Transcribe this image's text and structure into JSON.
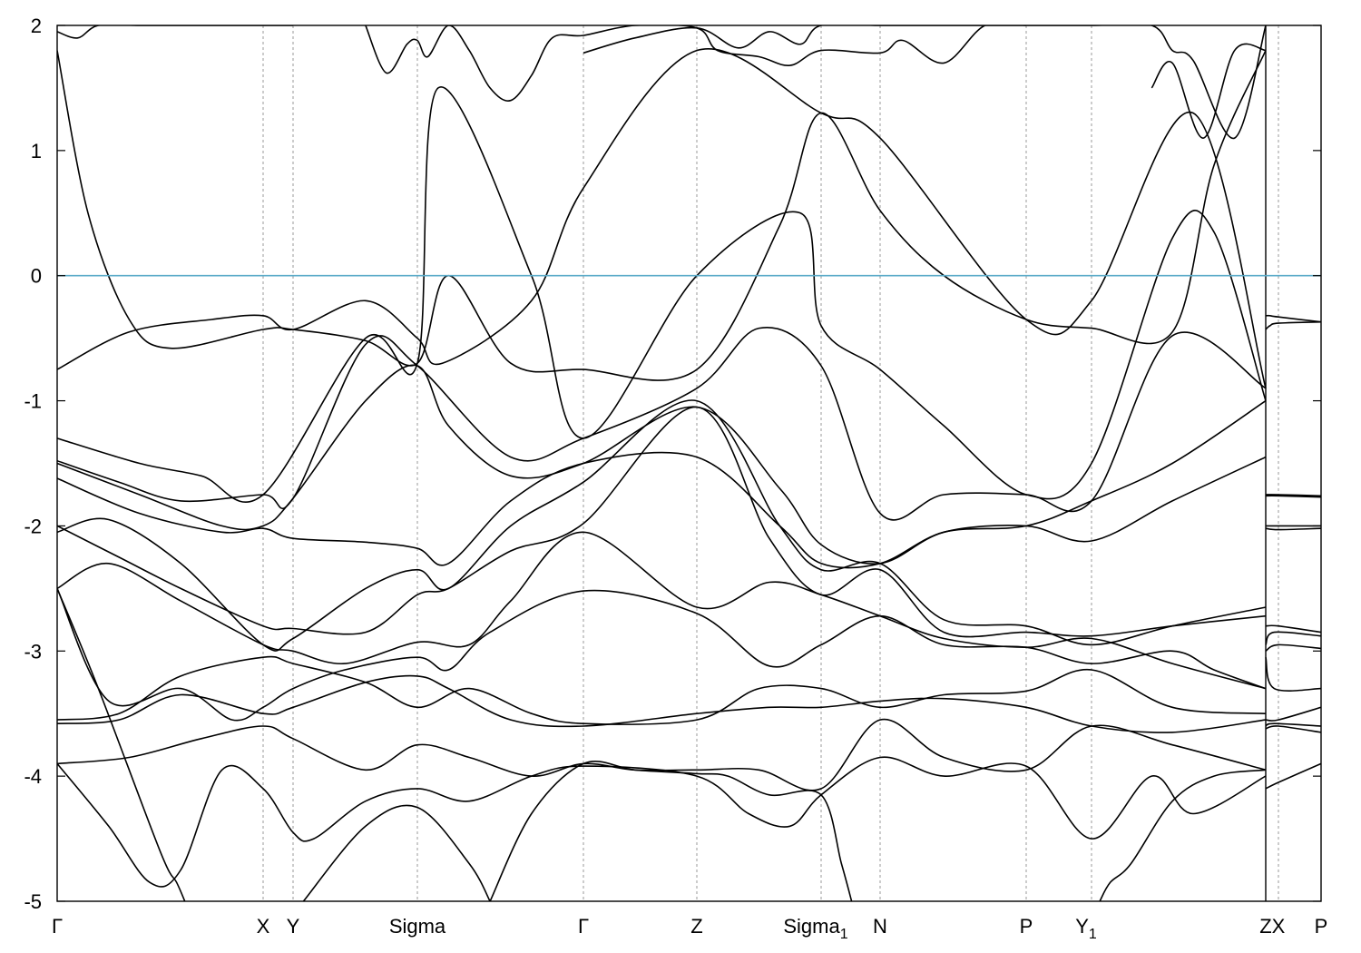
{
  "chart_data": {
    "type": "line",
    "title": "",
    "xlabel": "",
    "ylabel": "",
    "ylim": [
      -5,
      2
    ],
    "yticks": [
      -5,
      -4,
      -3,
      -2,
      -1,
      0,
      1,
      2
    ],
    "fermi_level": 0,
    "colors": {
      "bands": "#000000",
      "fermi": "#5aaac8",
      "kpath_lines": "#999999"
    },
    "kpoints": [
      {
        "label": "Γ",
        "sub": "",
        "k": 0.0
      },
      {
        "label": "X",
        "sub": "",
        "k": 1.0
      },
      {
        "label": "Y",
        "sub": "",
        "k": 1.15
      },
      {
        "label": "Sigma",
        "sub": "",
        "k": 1.75
      },
      {
        "label": "Γ",
        "sub": "",
        "k": 2.55
      },
      {
        "label": "Z",
        "sub": "",
        "k": 3.1
      },
      {
        "label": "Sigma",
        "sub": "1",
        "k": 3.7
      },
      {
        "label": "N",
        "sub": "",
        "k": 3.99
      },
      {
        "label": "P",
        "sub": "",
        "k": 4.7
      },
      {
        "label": "Y",
        "sub": "1",
        "k": 5.01
      },
      {
        "label": "Z",
        "sub": "",
        "k": 5.85
      },
      {
        "label": "X",
        "sub": "",
        "k": 6.0
      },
      {
        "label": "P",
        "sub": "",
        "k": 6.12
      }
    ],
    "x_range": [
      0.0,
      6.12
    ],
    "segment_break": 5.85,
    "series": [
      {
        "x": [
          0.0,
          0.35,
          0.75,
          1.0,
          1.15,
          1.5,
          1.75,
          1.87,
          2.3,
          2.55,
          3.1,
          3.7,
          3.99,
          4.7,
          5.01,
          5.5,
          5.85
        ],
        "y": [
          -0.75,
          -0.45,
          -0.35,
          -0.32,
          -0.43,
          -0.2,
          -0.5,
          -0.7,
          -0.2,
          0.7,
          1.8,
          1.3,
          1.1,
          -0.35,
          -0.2,
          1.3,
          -0.9
        ]
      },
      {
        "x": [
          0.0,
          0.15,
          0.35,
          0.55,
          1.0,
          1.15,
          1.5,
          1.75,
          1.9,
          2.2,
          2.55,
          3.1,
          3.5,
          3.7,
          3.99,
          4.3,
          4.7,
          5.01,
          5.4,
          5.6,
          5.85
        ],
        "y": [
          1.8,
          0.5,
          -0.35,
          -0.58,
          -0.43,
          -0.43,
          -0.52,
          -0.7,
          0.0,
          -0.7,
          -0.75,
          -0.75,
          0.4,
          1.3,
          0.52,
          0.0,
          -0.35,
          -0.42,
          -0.45,
          0.88,
          1.8
        ]
      },
      {
        "x": [
          0.0,
          0.4,
          0.7,
          1.0,
          1.5,
          1.75,
          1.85,
          2.3,
          2.55,
          3.1,
          3.6,
          3.7,
          3.99,
          4.3,
          4.7,
          5.01,
          5.4,
          5.6,
          5.85
        ],
        "y": [
          -1.3,
          -1.5,
          -1.6,
          -1.75,
          -0.5,
          -0.7,
          1.5,
          0.0,
          -1.3,
          0.0,
          0.5,
          -0.4,
          -0.75,
          -1.2,
          -1.75,
          -1.5,
          0.3,
          0.35,
          -1.0
        ]
      },
      {
        "x": [
          0.0,
          0.3,
          0.6,
          1.0,
          1.15,
          1.5,
          1.75,
          2.2,
          2.55,
          3.1,
          3.4,
          3.7,
          3.99,
          4.3,
          4.7,
          5.01,
          5.4,
          5.85
        ],
        "y": [
          -1.48,
          -1.65,
          -1.8,
          -1.75,
          -1.78,
          -0.55,
          -0.72,
          -1.45,
          -1.3,
          -0.9,
          -0.42,
          -0.72,
          -1.9,
          -1.75,
          -1.75,
          -1.8,
          -0.48,
          -0.9
        ]
      },
      {
        "x": [
          0.0,
          0.4,
          0.8,
          1.0,
          1.15,
          1.5,
          1.75,
          1.9,
          2.2,
          2.55,
          3.1,
          3.5,
          3.7,
          3.99,
          4.3,
          4.7,
          5.01,
          5.4,
          5.85
        ],
        "y": [
          -1.5,
          -1.75,
          -2.0,
          -2.0,
          -1.78,
          -1.0,
          -0.72,
          -1.2,
          -1.6,
          -1.5,
          -1.05,
          -1.7,
          -2.15,
          -2.3,
          -2.05,
          -2.0,
          -1.8,
          -1.5,
          -1.0
        ]
      },
      {
        "x": [
          0.0,
          0.4,
          0.8,
          1.0,
          1.15,
          1.5,
          1.75,
          1.9,
          2.2,
          2.55,
          3.1,
          3.5,
          3.7,
          3.99,
          4.3,
          4.7,
          5.01,
          5.4,
          5.85
        ],
        "y": [
          -1.62,
          -1.9,
          -2.05,
          -2.02,
          -2.1,
          -2.13,
          -2.18,
          -2.3,
          -1.8,
          -1.5,
          -1.45,
          -2.0,
          -2.3,
          -2.3,
          -2.05,
          -2.0,
          -2.12,
          -1.8,
          -1.45
        ]
      },
      {
        "x": [
          0.0,
          0.25,
          0.6,
          1.0,
          1.15,
          1.5,
          1.75,
          1.9,
          2.2,
          2.55,
          3.1,
          3.5,
          3.7,
          3.99,
          4.3,
          4.7,
          5.01,
          5.4,
          5.85
        ],
        "y": [
          -2.05,
          -1.95,
          -2.3,
          -2.95,
          -2.9,
          -2.5,
          -2.35,
          -2.5,
          -2.0,
          -1.65,
          -1.0,
          -2.0,
          -2.35,
          -2.3,
          -2.75,
          -2.8,
          -2.95,
          -2.8,
          -2.65
        ]
      },
      {
        "x": [
          0.0,
          0.3,
          0.6,
          1.0,
          1.15,
          1.5,
          1.75,
          1.9,
          2.2,
          2.55,
          3.1,
          3.45,
          3.7,
          3.99,
          4.3,
          4.7,
          5.01,
          5.4,
          5.85
        ],
        "y": [
          -2.0,
          -2.25,
          -2.5,
          -2.8,
          -2.82,
          -2.85,
          -2.55,
          -2.5,
          -2.2,
          -1.98,
          -1.05,
          -2.1,
          -2.55,
          -2.35,
          -2.85,
          -2.85,
          -2.88,
          -2.8,
          -2.72
        ]
      },
      {
        "x": [
          0.0,
          0.25,
          0.6,
          1.0,
          1.15,
          1.4,
          1.75,
          2.0,
          2.2,
          2.55,
          3.1,
          3.45,
          3.7,
          3.99,
          4.3,
          4.7,
          5.01,
          5.4,
          5.85
        ],
        "y": [
          -2.5,
          -2.3,
          -2.6,
          -2.95,
          -3.0,
          -3.1,
          -2.93,
          -2.95,
          -2.6,
          -2.05,
          -2.65,
          -2.45,
          -2.55,
          -2.72,
          -2.9,
          -2.97,
          -2.9,
          -3.1,
          -3.3
        ]
      },
      {
        "x": [
          0.0,
          0.25,
          0.6,
          0.85,
          1.0,
          1.15,
          1.4,
          1.75,
          1.9,
          2.1,
          2.55,
          3.1,
          3.45,
          3.7,
          3.99,
          4.3,
          4.7,
          5.01,
          5.4,
          5.6,
          5.85
        ],
        "y": [
          -2.5,
          -3.4,
          -3.3,
          -3.55,
          -3.45,
          -3.3,
          -3.15,
          -3.05,
          -3.15,
          -2.85,
          -2.52,
          -2.7,
          -3.12,
          -2.95,
          -2.72,
          -2.95,
          -2.97,
          -3.1,
          -3.0,
          -3.15,
          -3.3
        ]
      },
      {
        "x": [
          0.0,
          0.3,
          0.6,
          1.0,
          1.15,
          1.5,
          1.75,
          2.0,
          2.3,
          2.55,
          3.1,
          3.4,
          3.7,
          3.99,
          4.3,
          4.7,
          5.01,
          5.4,
          5.85
        ],
        "y": [
          -3.55,
          -3.5,
          -3.2,
          -3.05,
          -3.1,
          -3.25,
          -3.45,
          -3.3,
          -3.5,
          -3.58,
          -3.55,
          -3.3,
          -3.3,
          -3.45,
          -3.35,
          -3.32,
          -3.15,
          -3.45,
          -3.5
        ]
      },
      {
        "x": [
          0.0,
          0.3,
          0.6,
          1.0,
          1.15,
          1.5,
          1.75,
          1.9,
          2.2,
          2.55,
          3.1,
          3.45,
          3.7,
          3.99,
          4.3,
          4.7,
          5.01,
          5.4,
          5.85
        ],
        "y": [
          -3.58,
          -3.55,
          -3.35,
          -3.5,
          -3.45,
          -3.25,
          -3.2,
          -3.3,
          -3.55,
          -3.6,
          -3.5,
          -3.45,
          -3.45,
          -3.4,
          -3.38,
          -3.45,
          -3.6,
          -3.65,
          -3.55
        ]
      },
      {
        "x": [
          0.0,
          0.35,
          0.7,
          1.0,
          1.15,
          1.5,
          1.75,
          2.0,
          2.3,
          2.55,
          2.8,
          3.1,
          3.4,
          3.7,
          3.99,
          4.3,
          4.7,
          5.01,
          5.4,
          5.85
        ],
        "y": [
          -3.9,
          -3.85,
          -3.7,
          -3.6,
          -3.7,
          -3.95,
          -3.75,
          -3.85,
          -4.0,
          -3.9,
          -3.95,
          -3.95,
          -3.95,
          -4.1,
          -3.55,
          -3.85,
          -3.95,
          -3.6,
          -3.75,
          -3.95
        ]
      },
      {
        "x": [
          0.0,
          0.25,
          0.45,
          0.6,
          0.8,
          1.0,
          1.15,
          1.25,
          1.5,
          1.75,
          2.0,
          2.3,
          2.55,
          3.1,
          3.35,
          3.55,
          3.7,
          3.99,
          4.3,
          4.7,
          5.01,
          5.3,
          5.5,
          5.85
        ],
        "y": [
          -3.9,
          -4.4,
          -4.85,
          -4.75,
          -3.95,
          -4.1,
          -4.45,
          -4.5,
          -4.2,
          -4.1,
          -4.2,
          -4.0,
          -3.92,
          -4.0,
          -4.3,
          -4.4,
          -4.15,
          -3.85,
          -4.0,
          -3.92,
          -4.5,
          -4.0,
          -4.3,
          -4.0
        ]
      },
      {
        "x": [
          0.0,
          0.2,
          0.5,
          0.58,
          0.62
        ],
        "y": [
          -2.5,
          -3.3,
          -4.6,
          -4.85,
          -5.0
        ]
      },
      {
        "x": [
          1.2,
          1.5,
          1.75,
          2.0,
          2.1
        ],
        "y": [
          -5.0,
          -4.4,
          -4.25,
          -4.7,
          -5.0
        ]
      },
      {
        "x": [
          2.1,
          2.3,
          2.55,
          2.8,
          3.1,
          3.25,
          3.45,
          3.7,
          3.8,
          3.85
        ],
        "y": [
          -5.0,
          -4.3,
          -3.9,
          -3.95,
          -3.98,
          -4.0,
          -4.15,
          -4.15,
          -4.7,
          -5.0
        ]
      },
      {
        "x": [
          5.05,
          5.1,
          5.2,
          5.4,
          5.6,
          5.85
        ],
        "y": [
          -5.0,
          -4.85,
          -4.7,
          -4.2,
          -4.0,
          -3.95
        ]
      },
      {
        "x": [
          0.0,
          0.1,
          0.2,
          0.4,
          0.6,
          0.8,
          1.0,
          1.15
        ],
        "y": [
          1.95,
          1.9,
          2.0,
          2.0,
          2.0,
          2.0,
          2.0,
          2.0
        ]
      },
      {
        "x": [
          1.5,
          1.6,
          1.7,
          1.75,
          1.8,
          1.9,
          2.0,
          2.1,
          2.2,
          2.3,
          2.4,
          2.55,
          2.8,
          3.1,
          3.2,
          3.4,
          3.55,
          3.7,
          3.99,
          4.1,
          4.3,
          4.5,
          4.7
        ],
        "y": [
          2.0,
          1.62,
          1.85,
          1.88,
          1.75,
          2.0,
          1.8,
          1.5,
          1.4,
          1.6,
          1.9,
          1.92,
          2.0,
          1.98,
          1.8,
          1.75,
          1.68,
          1.8,
          1.78,
          1.88,
          1.7,
          2.0,
          2.0
        ]
      },
      {
        "x": [
          2.55,
          2.8,
          3.1,
          3.3,
          3.45,
          3.6,
          3.7,
          3.99,
          4.2,
          4.7,
          5.01,
          5.3,
          5.4,
          5.5,
          5.7,
          5.85
        ],
        "y": [
          1.78,
          1.9,
          1.98,
          1.82,
          1.95,
          1.85,
          2.0,
          2.0,
          2.0,
          2.0,
          2.0,
          2.0,
          1.8,
          1.72,
          1.1,
          2.0
        ]
      },
      {
        "x": [
          5.3,
          5.4,
          5.55,
          5.7,
          5.85
        ],
        "y": [
          1.5,
          1.7,
          1.1,
          1.8,
          1.8
        ]
      },
      {
        "x": [
          5.85,
          5.9,
          6.0,
          6.12
        ],
        "y": [
          -0.43,
          -0.4,
          -0.38,
          -0.37
        ]
      },
      {
        "x": [
          5.85,
          5.9,
          6.0,
          6.12
        ],
        "y": [
          -0.32,
          -0.32,
          -0.33,
          -0.37
        ]
      },
      {
        "x": [
          5.85,
          6.0,
          6.12
        ],
        "y": [
          -1.75,
          -1.75,
          -1.76
        ]
      },
      {
        "x": [
          5.85,
          6.0,
          6.12
        ],
        "y": [
          -1.76,
          -1.76,
          -1.77
        ]
      },
      {
        "x": [
          5.85,
          6.0,
          6.12
        ],
        "y": [
          -2.0,
          -2.0,
          -2.0
        ]
      },
      {
        "x": [
          5.85,
          6.0,
          6.12
        ],
        "y": [
          -2.02,
          -2.03,
          -2.02
        ]
      },
      {
        "x": [
          5.85,
          6.0,
          6.12
        ],
        "y": [
          -2.8,
          -2.8,
          -2.85
        ]
      },
      {
        "x": [
          5.85,
          5.95,
          6.12
        ],
        "y": [
          -2.95,
          -2.85,
          -2.88
        ]
      },
      {
        "x": [
          5.85,
          6.0,
          6.12
        ],
        "y": [
          -3.0,
          -2.95,
          -2.98
        ]
      },
      {
        "x": [
          5.85,
          5.95,
          6.12
        ],
        "y": [
          -3.05,
          -3.3,
          -3.3
        ]
      },
      {
        "x": [
          5.85,
          6.0,
          6.12
        ],
        "y": [
          -3.55,
          -3.55,
          -3.45
        ]
      },
      {
        "x": [
          5.85,
          5.95,
          6.12
        ],
        "y": [
          -3.6,
          -3.58,
          -3.6
        ]
      },
      {
        "x": [
          5.85,
          6.0,
          6.12
        ],
        "y": [
          -4.1,
          -4.05,
          -3.9
        ]
      },
      {
        "x": [
          5.85,
          6.0,
          6.12
        ],
        "y": [
          -3.62,
          -3.6,
          -3.65
        ]
      }
    ]
  }
}
